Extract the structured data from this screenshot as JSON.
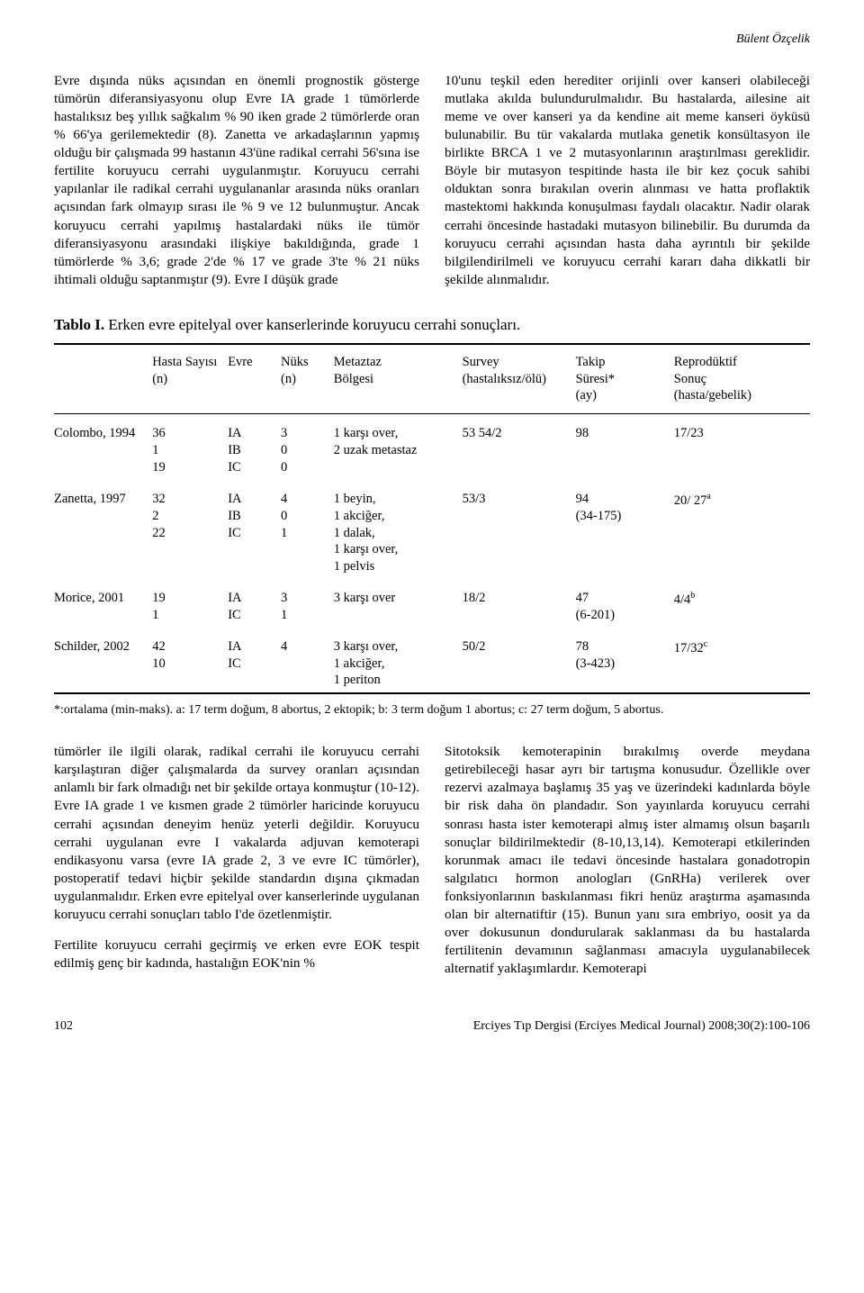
{
  "running_head": "Bülent Özçelik",
  "para_top_left": "Evre dışında nüks açısından en önemli prognostik gösterge tümörün diferansiyasyonu olup Evre IA grade 1 tümörlerde hastalıksız beş yıllık sağkalım % 90 iken grade 2 tümörlerde oran % 66'ya gerilemektedir (8). Zanetta ve arkadaşlarının yapmış olduğu bir çalışmada 99 hastanın 43'üne radikal cerrahi 56'sına ise fertilite koruyucu cerrahi uygulanmıştır. Koruyucu cerrahi yapılanlar ile radikal cerrahi uygulananlar arasında nüks oranları açısından fark olmayıp sırası ile % 9 ve 12 bulunmuştur. Ancak koruyucu cerrahi yapılmış hastalardaki nüks ile tümör diferansiyasyonu arasındaki ilişkiye bakıldığında, grade 1 tümörlerde % 3,6; grade 2'de % 17 ve grade 3'te % 21 nüks ihtimali olduğu saptanmıştır (9). Evre I düşük grade",
  "para_top_right": "10'unu teşkil eden herediter orijinli over kanseri olabileceği mutlaka akılda bulundurulmalıdır. Bu hastalarda, ailesine ait meme ve over kanseri ya da kendine ait meme kanseri öyküsü bulunabilir. Bu tür vakalarda mutlaka genetik konsültasyon ile birlikte BRCA 1 ve 2 mutasyonlarının araştırılması gereklidir. Böyle bir mutasyon tespitinde hasta ile bir kez çocuk sahibi olduktan sonra bırakılan overin alınması ve hatta proflaktik mastektomi hakkında konuşulması faydalı olacaktır. Nadir olarak cerrahi öncesinde hastadaki mutasyon bilinebilir. Bu durumda da koruyucu cerrahi açısından hasta daha ayrıntılı bir şekilde bilgilendirilmeli ve koruyucu cerrahi kararı daha dikkatli bir şekilde alınmalıdır.",
  "table": {
    "title_bold": "Tablo I.",
    "title_rest": " Erken evre epitelyal over kanserlerinde koruyucu cerrahi sonuçları.",
    "columns": {
      "c0": "",
      "c1_a": "Hasta Sayısı",
      "c1_b": "(n)",
      "c2": "Evre",
      "c3_a": "Nüks",
      "c3_b": "(n)",
      "c4_a": "Metaztaz",
      "c4_b": "Bölgesi",
      "c5_a": "Survey",
      "c5_b": "(hastalıksız/ölü)",
      "c6_a": "Takip",
      "c6_b": "Süresi*",
      "c6_c": "(ay)",
      "c7_a": "Reprodüktif",
      "c7_b": "Sonuç",
      "c7_c": "(hasta/gebelik)"
    },
    "rows": [
      {
        "study": "Colombo, 1994",
        "n": "36\n1\n19",
        "evre": "IA\nIB\nIC",
        "nuks": "3\n0\n0",
        "metaz": "1 karşı over,\n2 uzak metastaz",
        "survey": "53 54/2",
        "takip": "98",
        "repro": "17/23",
        "repro_sup": ""
      },
      {
        "study": "Zanetta, 1997",
        "n": "32\n2\n22",
        "evre": "IA\nIB\nIC",
        "nuks": "4\n0\n1",
        "metaz": "1 beyin,\n1 akciğer,\n1 dalak,\n1 karşı over,\n1 pelvis",
        "survey": "53/3",
        "takip": "94\n(34-175)",
        "repro": "20/ 27",
        "repro_sup": "a"
      },
      {
        "study": "Morice, 2001",
        "n": "19\n1",
        "evre": "IA\nIC",
        "nuks": "3\n1",
        "metaz": "3 karşı over",
        "survey": "18/2",
        "takip": "47\n(6-201)",
        "repro": "4/4",
        "repro_sup": "b"
      },
      {
        "study": "Schilder, 2002",
        "n": "42\n10",
        "evre": "IA\nIC",
        "nuks": "4",
        "metaz": "3 karşı over,\n1 akciğer,\n1 periton",
        "survey": "50/2",
        "takip": "78\n(3-423)",
        "repro": "17/32",
        "repro_sup": "c"
      }
    ],
    "footnote": "*:ortalama (min-maks). a: 17 term doğum, 8 abortus, 2 ektopik; b: 3 term doğum 1 abortus; c: 27 term doğum, 5 abortus."
  },
  "para_bot_left_1": "tümörler ile ilgili olarak, radikal cerrahi ile koruyucu cerrahi karşılaştıran diğer çalışmalarda da survey oranları açısından anlamlı bir fark olmadığı net bir şekilde ortaya konmuştur (10-12). Evre IA grade 1 ve kısmen grade 2 tümörler haricinde koruyucu cerrahi açısından deneyim henüz yeterli değildir. Koruyucu cerrahi uygulanan evre I vakalarda adjuvan kemoterapi endikasyonu varsa (evre IA grade 2, 3 ve evre IC tümörler), postoperatif tedavi hiçbir şekilde standardın dışına çıkmadan uygulanmalıdır. Erken evre epitelyal over kanserlerinde uygulanan koruyucu cerrahi sonuçları tablo I'de özetlenmiştir.",
  "para_bot_left_2": "Fertilite koruyucu cerrahi geçirmiş ve erken evre EOK tespit edilmiş genç bir kadında, hastalığın EOK'nin %",
  "para_bot_right": "Sitotoksik kemoterapinin bırakılmış overde meydana getirebileceği hasar ayrı bir tartışma konusudur. Özellikle over rezervi azalmaya başlamış 35 yaş ve üzerindeki kadınlarda böyle bir risk daha ön plandadır. Son yayınlarda koruyucu cerrahi sonrası hasta ister kemoterapi almış ister almamış olsun başarılı sonuçlar bildirilmektedir (8-10,13,14). Kemoterapi etkilerinden korunmak amacı ile tedavi öncesinde hastalara gonadotropin salgılatıcı hormon anologları (GnRHa) verilerek over fonksiyonlarının baskılanması fikri henüz araştırma aşamasında olan bir alternatiftir (15). Bunun yanı sıra embriyo, oosit ya da over dokusunun dondurularak saklanması da bu hastalarda fertilitenin devamının sağlanması amacıyla uygulanabilecek alternatif yaklaşımlardır. Kemoterapi",
  "footer": {
    "page": "102",
    "journal": "Erciyes Tıp Dergisi (Erciyes Medical Journal) 2008;30(2):100-106"
  }
}
